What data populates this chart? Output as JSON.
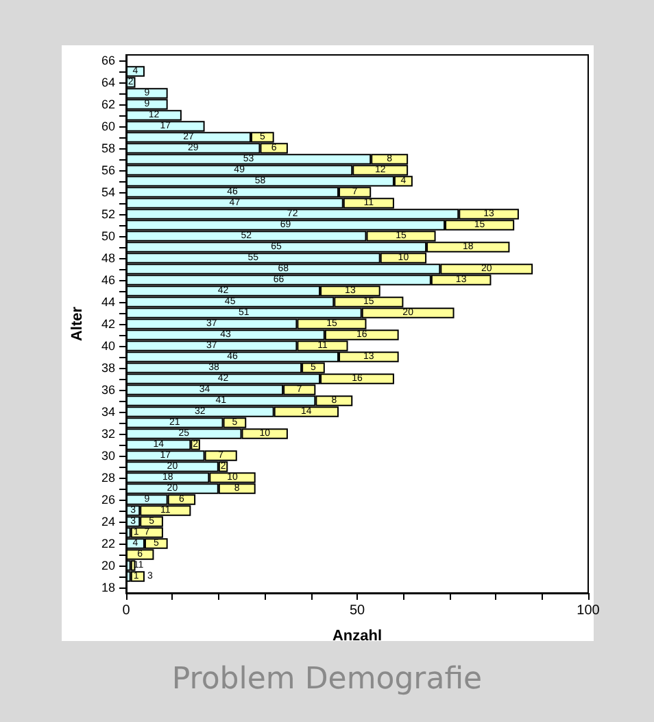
{
  "chart_data": {
    "type": "bar",
    "orientation": "horizontal",
    "stacked": true,
    "xlabel": "Anzahl",
    "ylabel": "Alter",
    "categories": [
      "66",
      null,
      "64",
      null,
      "62",
      null,
      "60",
      null,
      "58",
      null,
      "56",
      null,
      "54",
      null,
      "52",
      null,
      "50",
      null,
      "48",
      null,
      "46",
      null,
      "44",
      null,
      "42",
      null,
      "40",
      null,
      "38",
      null,
      "36",
      null,
      "34",
      null,
      "32",
      null,
      "30",
      null,
      "28",
      null,
      "26",
      null,
      "24",
      null,
      "22",
      null,
      "20",
      null,
      "18"
    ],
    "series": [
      {
        "color": "#ccffff",
        "values": [
          null,
          4,
          2,
          9,
          9,
          12,
          17,
          27,
          29,
          53,
          49,
          58,
          46,
          47,
          72,
          69,
          52,
          65,
          55,
          68,
          66,
          42,
          45,
          51,
          37,
          43,
          37,
          46,
          38,
          42,
          34,
          41,
          32,
          21,
          25,
          14,
          17,
          20,
          18,
          20,
          9,
          3,
          3,
          1,
          4,
          null,
          1,
          1,
          null
        ]
      },
      {
        "color": "#ffff99",
        "values": [
          null,
          null,
          null,
          null,
          null,
          null,
          null,
          5,
          6,
          8,
          12,
          4,
          7,
          11,
          13,
          15,
          15,
          18,
          10,
          20,
          13,
          13,
          15,
          20,
          15,
          16,
          11,
          13,
          5,
          16,
          7,
          8,
          14,
          5,
          10,
          2,
          7,
          2,
          10,
          8,
          6,
          11,
          5,
          7,
          5,
          6,
          1,
          3,
          null
        ]
      }
    ],
    "xlim": [
      0,
      100
    ],
    "xticks": [
      0,
      {
        "value": 10,
        "label": null
      },
      {
        "value": 20,
        "label": null
      },
      {
        "value": 30,
        "label": null
      },
      {
        "value": 40,
        "label": null
      },
      50,
      {
        "value": 60,
        "label": null
      },
      {
        "value": 70,
        "label": null
      },
      {
        "value": 80,
        "label": null
      },
      {
        "value": 90,
        "label": null
      },
      100
    ],
    "data_labels": true,
    "grid": false,
    "annotations": [
      "Problem Demografie"
    ]
  }
}
